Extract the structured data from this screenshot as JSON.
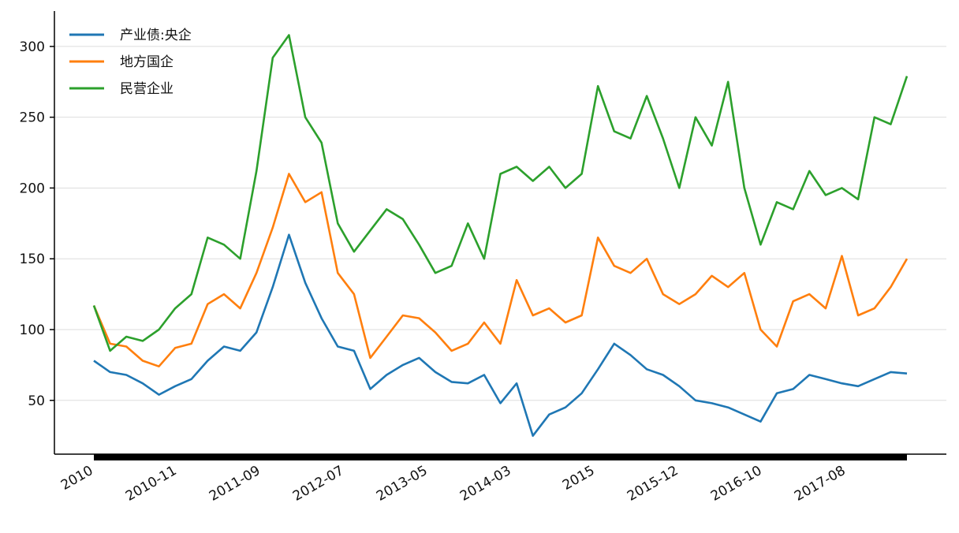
{
  "chart_data": {
    "type": "line",
    "title": "",
    "xlabel": "",
    "ylabel": "",
    "ylim": [
      12,
      325
    ],
    "yticks": [
      50,
      100,
      150,
      200,
      250,
      300
    ],
    "xtick_labels": [
      "2010",
      "2010-11",
      "2011-09",
      "2012-07",
      "2013-05",
      "2014-03",
      "2015",
      "2015-12",
      "2016-10",
      "2017-08"
    ],
    "grid": "horizontal",
    "legend_position": "top-left",
    "x_dates": [
      "2010-01",
      "2010-03",
      "2010-05",
      "2010-07",
      "2010-09",
      "2010-11",
      "2011-01",
      "2011-03",
      "2011-05",
      "2011-07",
      "2011-09",
      "2011-11",
      "2012-01",
      "2012-03",
      "2012-05",
      "2012-07",
      "2012-09",
      "2012-11",
      "2013-01",
      "2013-03",
      "2013-05",
      "2013-07",
      "2013-09",
      "2013-11",
      "2014-01",
      "2014-03",
      "2014-05",
      "2014-07",
      "2014-09",
      "2014-11",
      "2015-01",
      "2015-03",
      "2015-05",
      "2015-07",
      "2015-09",
      "2015-12",
      "2016-02",
      "2016-04",
      "2016-06",
      "2016-08",
      "2016-10",
      "2016-12",
      "2017-02",
      "2017-04",
      "2017-06",
      "2017-08",
      "2017-10",
      "2017-12",
      "2018-02",
      "2018-04",
      "2018-06"
    ],
    "series": [
      {
        "name": "产业债:央企",
        "color": "#1f77b4",
        "values": [
          78,
          70,
          68,
          62,
          54,
          60,
          65,
          78,
          88,
          85,
          98,
          130,
          167,
          133,
          108,
          88,
          85,
          58,
          68,
          75,
          80,
          70,
          63,
          62,
          68,
          48,
          62,
          25,
          40,
          45,
          55,
          72,
          90,
          82,
          72,
          68,
          60,
          50,
          48,
          45,
          40,
          35,
          55,
          58,
          68,
          65,
          62,
          60,
          65,
          70,
          69
        ]
      },
      {
        "name": "地方国企",
        "color": "#ff7f0e",
        "values": [
          117,
          90,
          88,
          78,
          74,
          87,
          90,
          118,
          125,
          115,
          140,
          172,
          210,
          190,
          197,
          140,
          125,
          80,
          95,
          110,
          108,
          98,
          85,
          90,
          105,
          90,
          135,
          110,
          115,
          105,
          110,
          165,
          145,
          140,
          150,
          125,
          118,
          125,
          138,
          130,
          140,
          100,
          88,
          120,
          125,
          115,
          152,
          110,
          115,
          130,
          150
        ]
      },
      {
        "name": "民营企业",
        "color": "#2ca02c",
        "values": [
          117,
          85,
          95,
          92,
          100,
          115,
          125,
          165,
          160,
          150,
          212,
          292,
          308,
          250,
          232,
          175,
          155,
          170,
          185,
          178,
          160,
          140,
          145,
          175,
          150,
          210,
          215,
          205,
          215,
          200,
          210,
          272,
          240,
          235,
          265,
          235,
          200,
          250,
          230,
          275,
          200,
          160,
          190,
          185,
          212,
          195,
          200,
          192,
          250,
          245,
          279
        ]
      }
    ]
  }
}
